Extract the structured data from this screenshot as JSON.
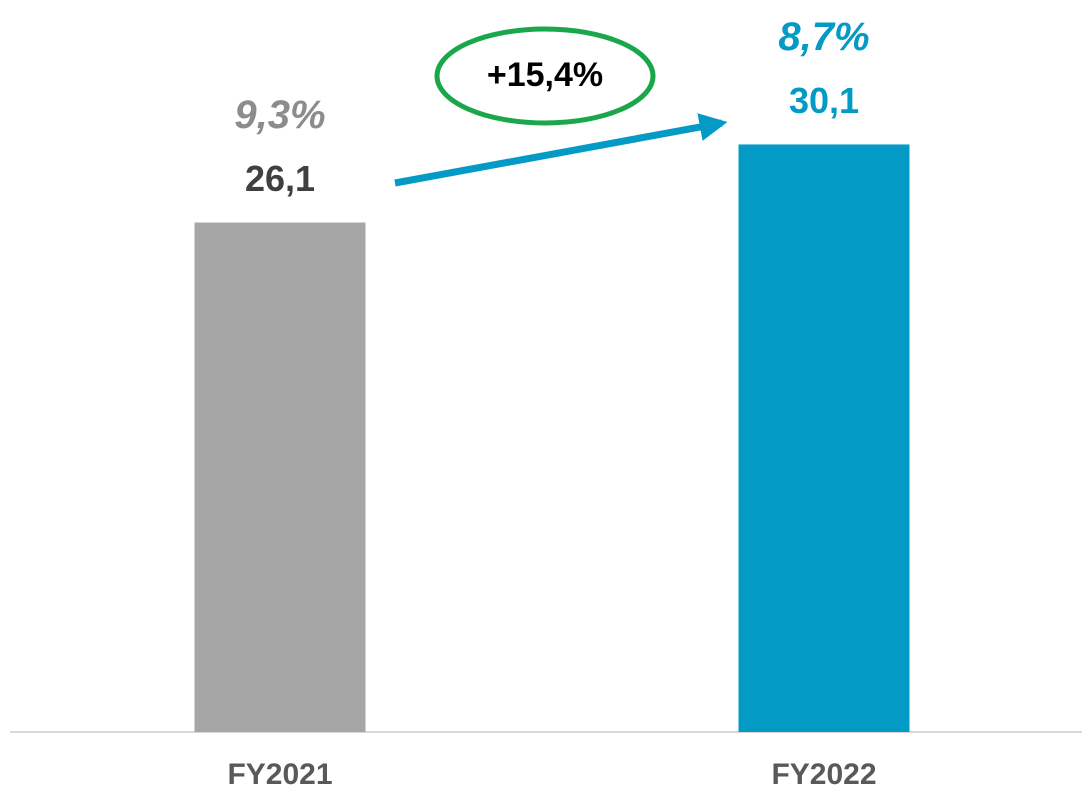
{
  "chart_data": {
    "type": "bar",
    "categories": [
      "FY2021",
      "FY2022"
    ],
    "values": [
      26.1,
      30.1
    ],
    "value_labels": [
      "26,1",
      "30,1"
    ],
    "margin_labels": [
      "9,3%",
      "8,7%"
    ],
    "colors": [
      "#a6a6a6",
      "#039ac6"
    ],
    "annotation": "+15,4%",
    "ylim": [
      0,
      37.5
    ]
  }
}
